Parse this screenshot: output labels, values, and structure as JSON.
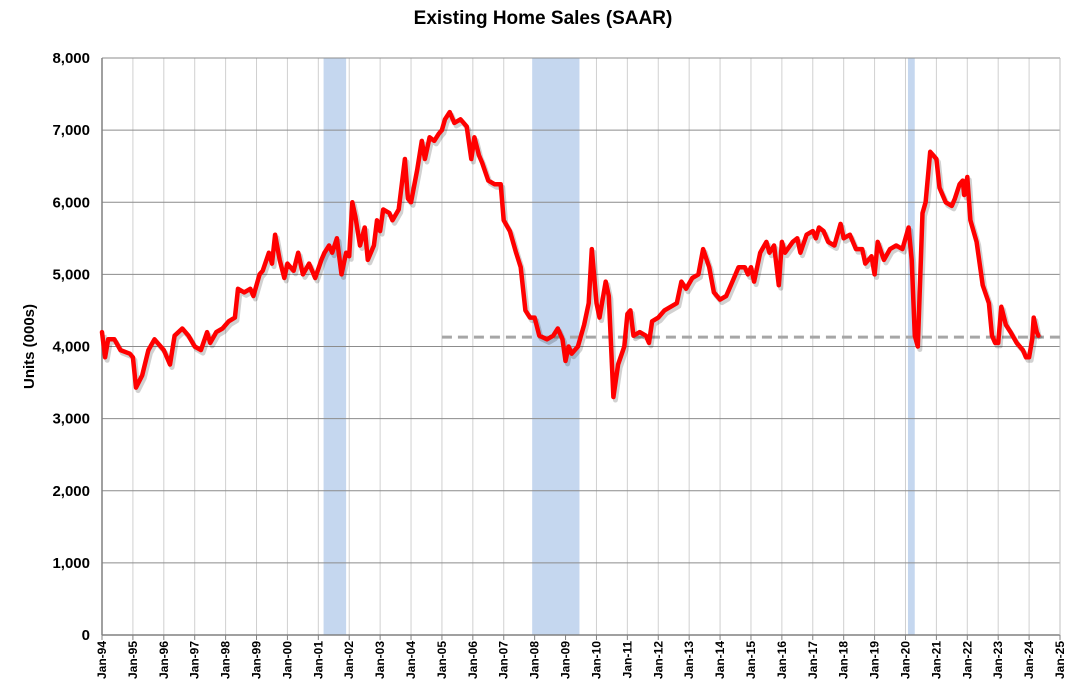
{
  "chart_data": {
    "type": "line",
    "title": "Existing Home Sales (SAAR)",
    "xlabel": "",
    "ylabel": "Units (000s)",
    "ylim": [
      0,
      8000
    ],
    "xlim": [
      1994,
      2025
    ],
    "yticks": [
      "0",
      "1,000",
      "2,000",
      "3,000",
      "4,000",
      "5,000",
      "6,000",
      "7,000",
      "8,000"
    ],
    "xticks": [
      "Jan-94",
      "Jan-95",
      "Jan-96",
      "Jan-97",
      "Jan-98",
      "Jan-99",
      "Jan-00",
      "Jan-01",
      "Jan-02",
      "Jan-03",
      "Jan-04",
      "Jan-05",
      "Jan-06",
      "Jan-07",
      "Jan-08",
      "Jan-09",
      "Jan-10",
      "Jan-11",
      "Jan-12",
      "Jan-13",
      "Jan-14",
      "Jan-15",
      "Jan-16",
      "Jan-17",
      "Jan-18",
      "Jan-19",
      "Jan-20",
      "Jan-21",
      "Jan-22",
      "Jan-23",
      "Jan-24",
      "Jan-25"
    ],
    "grid": true,
    "colors": {
      "series": "#ff0000",
      "recession": "#c5d7ef",
      "reference": "#a6a6a6"
    },
    "recessions": [
      [
        2001.17,
        2001.9
      ],
      [
        2007.92,
        2009.45
      ],
      [
        2020.08,
        2020.3
      ]
    ],
    "reference_line": {
      "value": 4130,
      "from": 2005.0,
      "to": 2025.0
    },
    "series": [
      {
        "name": "Existing Home Sales",
        "points": [
          [
            1994.0,
            4200
          ],
          [
            1994.1,
            3850
          ],
          [
            1994.2,
            4100
          ],
          [
            1994.4,
            4100
          ],
          [
            1994.6,
            3950
          ],
          [
            1994.9,
            3900
          ],
          [
            1995.0,
            3850
          ],
          [
            1995.1,
            3430
          ],
          [
            1995.3,
            3600
          ],
          [
            1995.5,
            3950
          ],
          [
            1995.7,
            4100
          ],
          [
            1996.0,
            3950
          ],
          [
            1996.2,
            3750
          ],
          [
            1996.35,
            4150
          ],
          [
            1996.6,
            4250
          ],
          [
            1996.8,
            4150
          ],
          [
            1997.0,
            4000
          ],
          [
            1997.2,
            3950
          ],
          [
            1997.4,
            4200
          ],
          [
            1997.5,
            4050
          ],
          [
            1997.7,
            4200
          ],
          [
            1997.9,
            4250
          ],
          [
            1998.1,
            4350
          ],
          [
            1998.3,
            4400
          ],
          [
            1998.4,
            4800
          ],
          [
            1998.6,
            4750
          ],
          [
            1998.8,
            4800
          ],
          [
            1998.9,
            4700
          ],
          [
            1999.1,
            5000
          ],
          [
            1999.2,
            5050
          ],
          [
            1999.4,
            5300
          ],
          [
            1999.5,
            5150
          ],
          [
            1999.6,
            5550
          ],
          [
            1999.75,
            5200
          ],
          [
            1999.9,
            4950
          ],
          [
            2000.0,
            5150
          ],
          [
            2000.2,
            5050
          ],
          [
            2000.35,
            5300
          ],
          [
            2000.5,
            5000
          ],
          [
            2000.7,
            5150
          ],
          [
            2000.9,
            4950
          ],
          [
            2001.1,
            5200
          ],
          [
            2001.2,
            5300
          ],
          [
            2001.35,
            5400
          ],
          [
            2001.45,
            5300
          ],
          [
            2001.6,
            5500
          ],
          [
            2001.75,
            5000
          ],
          [
            2001.9,
            5300
          ],
          [
            2002.0,
            5250
          ],
          [
            2002.1,
            6000
          ],
          [
            2002.2,
            5800
          ],
          [
            2002.35,
            5400
          ],
          [
            2002.5,
            5650
          ],
          [
            2002.6,
            5200
          ],
          [
            2002.8,
            5400
          ],
          [
            2002.9,
            5750
          ],
          [
            2003.0,
            5600
          ],
          [
            2003.1,
            5900
          ],
          [
            2003.3,
            5850
          ],
          [
            2003.4,
            5750
          ],
          [
            2003.6,
            5900
          ],
          [
            2003.8,
            6600
          ],
          [
            2003.9,
            6050
          ],
          [
            2004.0,
            6000
          ],
          [
            2004.2,
            6450
          ],
          [
            2004.35,
            6850
          ],
          [
            2004.45,
            6600
          ],
          [
            2004.6,
            6900
          ],
          [
            2004.75,
            6850
          ],
          [
            2004.9,
            6950
          ],
          [
            2005.0,
            7000
          ],
          [
            2005.1,
            7150
          ],
          [
            2005.25,
            7250
          ],
          [
            2005.4,
            7100
          ],
          [
            2005.6,
            7150
          ],
          [
            2005.8,
            7050
          ],
          [
            2005.95,
            6600
          ],
          [
            2006.05,
            6900
          ],
          [
            2006.2,
            6650
          ],
          [
            2006.3,
            6550
          ],
          [
            2006.5,
            6300
          ],
          [
            2006.7,
            6250
          ],
          [
            2006.9,
            6250
          ],
          [
            2007.0,
            5750
          ],
          [
            2007.2,
            5600
          ],
          [
            2007.4,
            5300
          ],
          [
            2007.55,
            5100
          ],
          [
            2007.7,
            4500
          ],
          [
            2007.85,
            4400
          ],
          [
            2008.0,
            4400
          ],
          [
            2008.15,
            4150
          ],
          [
            2008.4,
            4100
          ],
          [
            2008.6,
            4150
          ],
          [
            2008.75,
            4250
          ],
          [
            2008.9,
            4100
          ],
          [
            2009.0,
            3800
          ],
          [
            2009.1,
            4000
          ],
          [
            2009.2,
            3900
          ],
          [
            2009.4,
            4000
          ],
          [
            2009.6,
            4300
          ],
          [
            2009.75,
            4600
          ],
          [
            2009.85,
            5350
          ],
          [
            2010.0,
            4600
          ],
          [
            2010.1,
            4400
          ],
          [
            2010.3,
            4900
          ],
          [
            2010.4,
            4700
          ],
          [
            2010.55,
            3300
          ],
          [
            2010.7,
            3750
          ],
          [
            2010.9,
            4000
          ],
          [
            2011.0,
            4450
          ],
          [
            2011.1,
            4500
          ],
          [
            2011.2,
            4150
          ],
          [
            2011.4,
            4200
          ],
          [
            2011.6,
            4150
          ],
          [
            2011.7,
            4050
          ],
          [
            2011.8,
            4350
          ],
          [
            2012.0,
            4400
          ],
          [
            2012.2,
            4500
          ],
          [
            2012.4,
            4550
          ],
          [
            2012.6,
            4600
          ],
          [
            2012.75,
            4900
          ],
          [
            2012.9,
            4800
          ],
          [
            2013.1,
            4950
          ],
          [
            2013.3,
            5000
          ],
          [
            2013.45,
            5350
          ],
          [
            2013.65,
            5100
          ],
          [
            2013.8,
            4750
          ],
          [
            2014.0,
            4650
          ],
          [
            2014.2,
            4700
          ],
          [
            2014.4,
            4900
          ],
          [
            2014.6,
            5100
          ],
          [
            2014.8,
            5100
          ],
          [
            2014.9,
            5000
          ],
          [
            2015.0,
            5100
          ],
          [
            2015.1,
            4900
          ],
          [
            2015.3,
            5300
          ],
          [
            2015.5,
            5450
          ],
          [
            2015.6,
            5300
          ],
          [
            2015.75,
            5400
          ],
          [
            2015.9,
            4850
          ],
          [
            2016.0,
            5450
          ],
          [
            2016.1,
            5300
          ],
          [
            2016.35,
            5450
          ],
          [
            2016.5,
            5500
          ],
          [
            2016.6,
            5300
          ],
          [
            2016.8,
            5550
          ],
          [
            2017.0,
            5600
          ],
          [
            2017.1,
            5500
          ],
          [
            2017.2,
            5650
          ],
          [
            2017.35,
            5600
          ],
          [
            2017.5,
            5450
          ],
          [
            2017.7,
            5400
          ],
          [
            2017.9,
            5700
          ],
          [
            2018.0,
            5500
          ],
          [
            2018.2,
            5550
          ],
          [
            2018.4,
            5350
          ],
          [
            2018.6,
            5350
          ],
          [
            2018.7,
            5150
          ],
          [
            2018.9,
            5250
          ],
          [
            2019.0,
            5000
          ],
          [
            2019.1,
            5450
          ],
          [
            2019.3,
            5200
          ],
          [
            2019.5,
            5350
          ],
          [
            2019.7,
            5400
          ],
          [
            2019.9,
            5350
          ],
          [
            2020.0,
            5500
          ],
          [
            2020.1,
            5650
          ],
          [
            2020.2,
            5200
          ],
          [
            2020.3,
            4150
          ],
          [
            2020.4,
            4000
          ],
          [
            2020.55,
            5850
          ],
          [
            2020.65,
            6000
          ],
          [
            2020.8,
            6700
          ],
          [
            2020.9,
            6650
          ],
          [
            2021.0,
            6600
          ],
          [
            2021.1,
            6200
          ],
          [
            2021.3,
            6000
          ],
          [
            2021.5,
            5950
          ],
          [
            2021.6,
            6050
          ],
          [
            2021.75,
            6250
          ],
          [
            2021.85,
            6300
          ],
          [
            2021.9,
            6100
          ],
          [
            2022.0,
            6350
          ],
          [
            2022.1,
            5750
          ],
          [
            2022.3,
            5450
          ],
          [
            2022.5,
            4850
          ],
          [
            2022.7,
            4600
          ],
          [
            2022.8,
            4150
          ],
          [
            2022.9,
            4050
          ],
          [
            2023.0,
            4050
          ],
          [
            2023.1,
            4550
          ],
          [
            2023.25,
            4300
          ],
          [
            2023.4,
            4200
          ],
          [
            2023.6,
            4050
          ],
          [
            2023.8,
            3950
          ],
          [
            2023.9,
            3850
          ],
          [
            2024.0,
            3850
          ],
          [
            2024.1,
            4100
          ],
          [
            2024.15,
            4400
          ],
          [
            2024.25,
            4200
          ],
          [
            2024.3,
            4150
          ]
        ]
      }
    ]
  }
}
